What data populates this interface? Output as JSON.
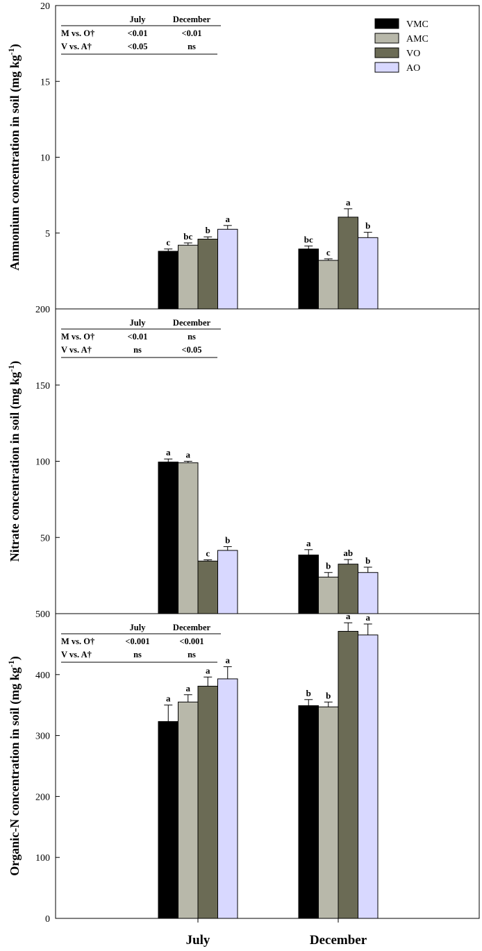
{
  "chart_data": [
    {
      "type": "bar",
      "categories": [
        "July",
        "December"
      ],
      "ylabel_main": "Ammonium concentration in soil  (mg kg",
      "ylabel_sup": "-1",
      "ylabel_close": ")",
      "ylim": [
        0,
        20
      ],
      "yticks": [
        {
          "value": 5,
          "label": "5"
        },
        {
          "value": 10,
          "label": "10"
        },
        {
          "value": 15,
          "label": "15"
        },
        {
          "value": 20,
          "label": "20"
        }
      ],
      "series": [
        {
          "name": "VMC",
          "values": [
            3.8,
            3.95
          ],
          "errors": [
            0.15,
            0.2
          ],
          "letters": [
            "c",
            "bc"
          ]
        },
        {
          "name": "AMC",
          "values": [
            4.2,
            3.2
          ],
          "errors": [
            0.15,
            0.1
          ],
          "letters": [
            "bc",
            "c"
          ]
        },
        {
          "name": "VO",
          "values": [
            4.6,
            6.05
          ],
          "errors": [
            0.15,
            0.55
          ],
          "letters": [
            "b",
            "a"
          ]
        },
        {
          "name": "AO",
          "values": [
            5.25,
            4.7
          ],
          "errors": [
            0.25,
            0.35
          ],
          "letters": [
            "a",
            "b"
          ]
        }
      ],
      "stats": {
        "headers": [
          "July",
          "December"
        ],
        "rows": [
          {
            "label": "M vs. O†",
            "july": "<0.01",
            "december": "<0.01"
          },
          {
            "label": "V vs. A†",
            "july": "<0.05",
            "december": "ns"
          }
        ]
      },
      "legend": {
        "placement": "top-right"
      }
    },
    {
      "type": "bar",
      "categories": [
        "July",
        "December"
      ],
      "ylabel_main": "Nitrate concentration in soil  (mg kg",
      "ylabel_sup": "-1",
      "ylabel_close": ")",
      "ylim": [
        0,
        200
      ],
      "yticks": [
        {
          "value": 50,
          "label": "50"
        },
        {
          "value": 100,
          "label": "100"
        },
        {
          "value": 150,
          "label": "150"
        },
        {
          "value": 200,
          "label": "200"
        }
      ],
      "series": [
        {
          "name": "VMC",
          "values": [
            99.5,
            38.5
          ],
          "errors": [
            2,
            3.5
          ],
          "letters": [
            "a",
            "a"
          ]
        },
        {
          "name": "AMC",
          "values": [
            99,
            24
          ],
          "errors": [
            1,
            3
          ],
          "letters": [
            "a",
            "b"
          ]
        },
        {
          "name": "VO",
          "values": [
            34.5,
            32.5
          ],
          "errors": [
            0.8,
            3
          ],
          "letters": [
            "c",
            "ab"
          ]
        },
        {
          "name": "AO",
          "values": [
            41.5,
            27
          ],
          "errors": [
            2.5,
            3.5
          ],
          "letters": [
            "b",
            "b"
          ]
        }
      ],
      "stats": {
        "headers": [
          "July",
          "December"
        ],
        "rows": [
          {
            "label": "M vs. O†",
            "july": "<0.01",
            "december": "ns"
          },
          {
            "label": "V vs. A†",
            "july": "ns",
            "december": "<0.05"
          }
        ]
      }
    },
    {
      "type": "bar",
      "categories": [
        "July",
        "December"
      ],
      "ylabel_main": "Organic-N concentration in soil  (mg kg",
      "ylabel_sup": "-1",
      "ylabel_close": ")",
      "ylim": [
        0,
        500
      ],
      "yticks": [
        {
          "value": 0,
          "label": "0"
        },
        {
          "value": 100,
          "label": "100"
        },
        {
          "value": 200,
          "label": "200"
        },
        {
          "value": 300,
          "label": "300"
        },
        {
          "value": 400,
          "label": "400"
        },
        {
          "value": 500,
          "label": "500"
        }
      ],
      "series": [
        {
          "name": "VMC",
          "values": [
            323,
            349
          ],
          "errors": [
            27,
            10
          ],
          "letters": [
            "a",
            "b"
          ]
        },
        {
          "name": "AMC",
          "values": [
            355,
            347
          ],
          "errors": [
            12,
            8
          ],
          "letters": [
            "a",
            "b"
          ]
        },
        {
          "name": "VO",
          "values": [
            381,
            471
          ],
          "errors": [
            15,
            14
          ],
          "letters": [
            "a",
            "a"
          ]
        },
        {
          "name": "AO",
          "values": [
            393,
            465
          ],
          "errors": [
            20,
            18
          ],
          "letters": [
            "a",
            "a"
          ]
        }
      ],
      "stats": {
        "headers": [
          "July",
          "December"
        ],
        "rows": [
          {
            "label": "M vs. O†",
            "july": "<0.001",
            "december": "<0.001"
          },
          {
            "label": "V vs. A†",
            "july": "ns",
            "december": "ns"
          }
        ]
      }
    }
  ],
  "legend": {
    "items": [
      {
        "name": "VMC",
        "color": "#000000"
      },
      {
        "name": "AMC",
        "color": "#b8b8aa"
      },
      {
        "name": "VO",
        "color": "#6b6b55"
      },
      {
        "name": "AO",
        "color": "#d8d8ff"
      }
    ]
  },
  "x_categories": [
    "July",
    "December"
  ],
  "colors": {
    "VMC": "#000000",
    "AMC": "#b8b8aa",
    "VO": "#6b6b55",
    "AO": "#d8d8ff"
  }
}
